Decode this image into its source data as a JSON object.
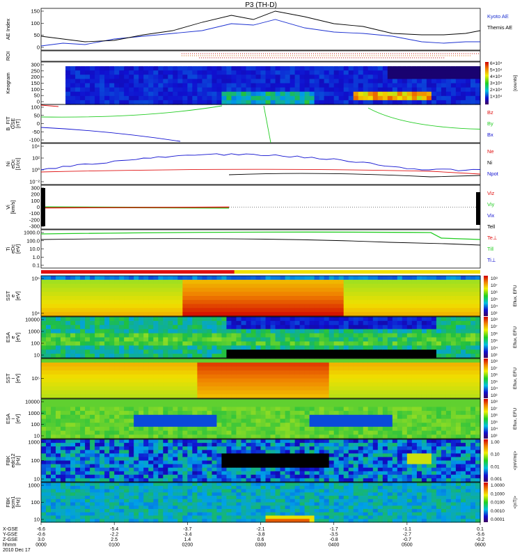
{
  "title": "P3 (TH-D)",
  "colors": {
    "kyoto": "#1a2fd0",
    "themis": "#000000",
    "red": "#e01010",
    "green": "#22cc22",
    "blue": "#1010d0",
    "yellow": "#f0e000"
  },
  "panels": [
    {
      "id": "ae",
      "ylabel": [
        "AE Index"
      ],
      "ticks": [
        "150",
        "100",
        "50",
        "0"
      ],
      "legend": [
        {
          "t": "Kyoto AE",
          "c": "#1a2fd0"
        },
        {
          "t": "Themis AE",
          "c": "#000000"
        }
      ]
    },
    {
      "id": "roi",
      "ylabel": [
        "ROI"
      ],
      "ticks": [],
      "legend": []
    },
    {
      "id": "keo",
      "ylabel": [
        "Keogram"
      ],
      "ticks": [
        "300",
        "250",
        "200",
        "150",
        "100",
        "50",
        "0"
      ],
      "legend": [],
      "cbar": {
        "labels": [
          "6×10⁴",
          "5×10⁴",
          "4×10⁴",
          "3×10⁴",
          "2×10⁴",
          "1×10⁴"
        ],
        "title": "[counts]"
      }
    },
    {
      "id": "bfit",
      "ylabel": [
        "B_FIT",
        "GSE",
        "[nT]"
      ],
      "ticks": [
        "100",
        "50",
        "0",
        "-50",
        "-100"
      ],
      "legend": [
        {
          "t": "Bz",
          "c": "#e01010"
        },
        {
          "t": "By",
          "c": "#22cc22"
        },
        {
          "t": "Bx",
          "c": "#1010d0"
        }
      ]
    },
    {
      "id": "ni",
      "ylabel": [
        "Ni",
        "eDc",
        "[1/cc]"
      ],
      "ticks": [
        "10⁴",
        "10²",
        "10⁰",
        "10⁻²"
      ],
      "legend": [
        {
          "t": "Ne",
          "c": "#e01010"
        },
        {
          "t": "Ni",
          "c": "#000000"
        },
        {
          "t": "Npot",
          "c": "#1010d0"
        }
      ]
    },
    {
      "id": "vi",
      "ylabel": [
        "Vi",
        "[km/s]"
      ],
      "ticks": [
        "300",
        "200",
        "100",
        "0",
        "-100",
        "-200",
        "-300"
      ],
      "legend": [
        {
          "t": "Viz",
          "c": "#e01010"
        },
        {
          "t": "Viy",
          "c": "#22cc22"
        },
        {
          "t": "Vix",
          "c": "#1010d0"
        },
        {
          "t": "Tell",
          "c": "#000000"
        }
      ]
    },
    {
      "id": "te",
      "ylabel": [
        "Ti",
        "eDc",
        "[eV]"
      ],
      "ticks": [
        "1000.0",
        "100.0",
        "10.0",
        "1.0",
        "0.1"
      ],
      "legend": [
        {
          "t": "Te⊥",
          "c": "#e01010"
        },
        {
          "t": "Ti‖",
          "c": "#22cc22"
        },
        {
          "t": "Ti⊥",
          "c": "#1010d0"
        }
      ]
    },
    {
      "id": "sst_e",
      "ylabel": [
        "SST",
        "e",
        "[eV]"
      ],
      "ticks": [
        "10⁵",
        "10⁴"
      ],
      "legend": []
    },
    {
      "id": "esa_e",
      "ylabel": [
        "ESA",
        "e",
        "[eV]"
      ],
      "ticks": [
        "10000",
        "1000",
        "100",
        "10"
      ],
      "legend": []
    },
    {
      "id": "sst_i",
      "ylabel": [
        "SST",
        "i",
        "[eV]"
      ],
      "ticks": [
        "10⁵"
      ],
      "legend": []
    },
    {
      "id": "esa_i",
      "ylabel": [
        "ESA",
        "i",
        "[eV]"
      ],
      "ticks": [
        "10000",
        "1000",
        "100",
        "10"
      ],
      "legend": []
    },
    {
      "id": "fbk_e",
      "ylabel": [
        "FBK",
        "edc12",
        "[Hz]"
      ],
      "ticks": [
        "1000",
        "100",
        "10"
      ],
      "legend": []
    },
    {
      "id": "fbk_b",
      "ylabel": [
        "FBK",
        "scm1",
        "[Hz]"
      ],
      "ticks": [
        "1000",
        "100",
        "10"
      ],
      "legend": []
    }
  ],
  "colorbars": [
    {
      "labels": [
        "10⁸",
        "10⁷",
        "10⁶",
        "10⁵",
        "10⁴",
        "10³"
      ],
      "title": "Eflux, EFU"
    },
    {
      "labels": [
        "10⁸",
        "10⁷",
        "10⁶",
        "10⁵",
        "10⁴",
        "10³"
      ],
      "title": "Eflux, EFU"
    },
    {
      "labels": [
        "10⁸",
        "10⁷",
        "10⁶",
        "10⁵",
        "10⁴",
        "10³"
      ],
      "title": "Eflux, EFU"
    },
    {
      "labels": [
        "10⁸",
        "10⁷",
        "10⁶",
        "10⁵",
        "10⁴",
        "10³"
      ],
      "title": "Eflux, EFU"
    },
    {
      "labels": [
        "1.00",
        "0.10",
        "0.01",
        "0.001"
      ],
      "title": "<|mV/m|>"
    },
    {
      "labels": [
        "1.0000",
        "0.1000",
        "0.0100",
        "0.0010",
        "0.0001"
      ],
      "title": "<|nT|>"
    }
  ],
  "axis": {
    "row_labels": [
      "X-GSE",
      "Y-GSE",
      "Z-GSE",
      "hhmm",
      "2010 Dec 17"
    ],
    "columns": [
      [
        "-6.6",
        "-0.6",
        "3.0",
        "0000"
      ],
      [
        "-5.4",
        "-2.2",
        "2.5",
        "0100"
      ],
      [
        "-3.7",
        "-3.4",
        "1.4",
        "0200"
      ],
      [
        "-2.1",
        "-3.8",
        "0.6",
        "0300"
      ],
      [
        "-1.7",
        "-3.5",
        "-0.8",
        "0400"
      ],
      [
        "-1.1",
        "-2.7",
        "-0.7",
        "0500"
      ],
      [
        "0.1",
        "-5.6",
        "-0.2",
        "0600"
      ]
    ]
  },
  "chart_data": {
    "type": "line",
    "title": "P3 (TH-D)",
    "x_label": "hhmm",
    "x_ticks": [
      "0000",
      "0100",
      "0200",
      "0300",
      "0400",
      "0500",
      "0600"
    ],
    "series": [
      {
        "name": "Kyoto AE",
        "x_hours": [
          0,
          0.3,
          0.6,
          1.0,
          1.4,
          1.8,
          2.2,
          2.6,
          2.9,
          3.2,
          3.6,
          4.0,
          4.4,
          4.8,
          5.2,
          5.5,
          5.8,
          6.0
        ],
        "values": [
          15,
          25,
          20,
          40,
          50,
          60,
          70,
          95,
          90,
          110,
          80,
          65,
          60,
          50,
          30,
          25,
          30,
          30
        ]
      },
      {
        "name": "Themis AE",
        "x_hours": [
          0,
          0.3,
          0.6,
          1.0,
          1.4,
          1.8,
          2.2,
          2.6,
          2.9,
          3.2,
          3.6,
          4.0,
          4.4,
          4.8,
          5.2,
          5.5,
          5.8,
          6.0
        ],
        "values": [
          50,
          40,
          30,
          35,
          55,
          70,
          100,
          125,
          110,
          140,
          120,
          95,
          85,
          60,
          55,
          55,
          60,
          70
        ]
      }
    ],
    "ylim": [
      0,
      150
    ]
  }
}
